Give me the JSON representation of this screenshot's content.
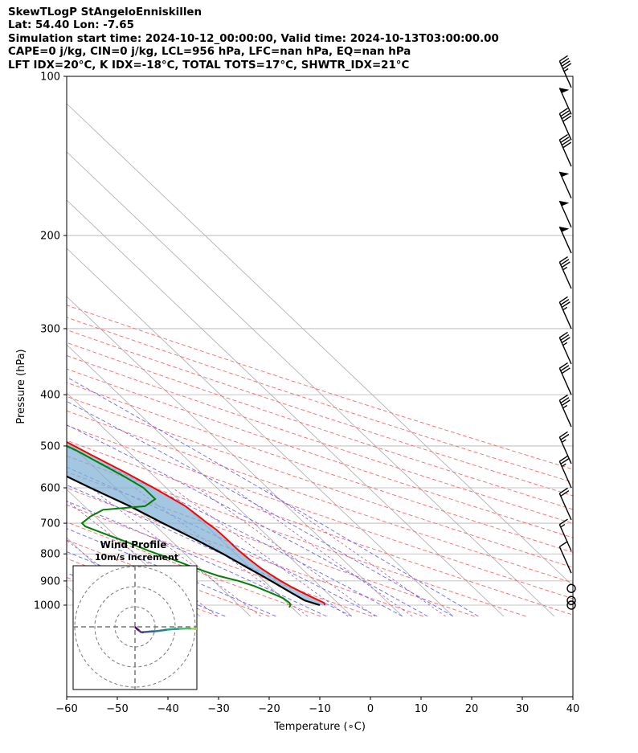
{
  "header": {
    "line1": "SkewTLogP StAngeloEnniskillen",
    "line2": "Lat: 54.40   Lon: -7.65",
    "line3": "Simulation start time: 2024-10-12_00:00:00, Valid time: 2024-10-13T03:00:00.00",
    "line4": "CAPE=0 j/kg, CIN=0 j/kg, LCL=956 hPa, LFC=nan hPa, EQ=nan hPa",
    "line5": "LFT IDX=20°C, K IDX=-18°C, TOTAL TOTS=17°C, SHWTR_IDX=21°C"
  },
  "chart_data": [
    {
      "type": "line",
      "xlabel": "Temperature (∘C)",
      "ylabel": "Pressure (hPa)",
      "xlim": [
        -60,
        40
      ],
      "ylim": [
        1050,
        100
      ],
      "y_scale": "log",
      "skew": "temperature lines skewed ~45°",
      "xticks": [
        "−60",
        "−50",
        "−40",
        "−30",
        "−20",
        "−10",
        "0",
        "10",
        "20",
        "30",
        "40"
      ],
      "yticks": [
        "100",
        "200",
        "300",
        "400",
        "500",
        "600",
        "700",
        "800",
        "900",
        "1000"
      ],
      "grid": true,
      "colors": {
        "temperature": "#ff0000",
        "dewpoint": "#008000",
        "parcel": "#000000",
        "cin_fill": "#7fb0d6",
        "dry_adiabats": "#ff6666",
        "moist_adiabats": "#6666ff",
        "mixing_ratio": "#9b59b6",
        "isotherms": "#999999"
      },
      "series": [
        {
          "key": "temperature",
          "points": [
            [
              1000,
              7
            ],
            [
              990,
              7.3
            ],
            [
              970,
              6.3
            ],
            [
              950,
              5.3
            ],
            [
              925,
              4.2
            ],
            [
              900,
              3.3
            ],
            [
              875,
              2.6
            ],
            [
              850,
              2.0
            ],
            [
              820,
              1.6
            ],
            [
              800,
              1.4
            ],
            [
              780,
              1.3
            ],
            [
              750,
              1.3
            ],
            [
              720,
              1.2
            ],
            [
              700,
              0.8
            ],
            [
              680,
              0.5
            ],
            [
              650,
              0
            ],
            [
              600,
              -2.5
            ],
            [
              560,
              -5
            ],
            [
              520,
              -8
            ],
            [
              500,
              -9.5
            ],
            [
              470,
              -12
            ],
            [
              450,
              -14
            ],
            [
              430,
              -16
            ],
            [
              400,
              -20
            ],
            [
              350,
              -26
            ],
            [
              300,
              -33
            ],
            [
              270,
              -38.5
            ],
            [
              255,
              -43
            ],
            [
              240,
              -46
            ],
            [
              225,
              -49
            ],
            [
              210,
              -52
            ],
            [
              200,
              -54.5
            ],
            [
              190,
              -52
            ],
            [
              180,
              -50
            ],
            [
              170,
              -49.5
            ],
            [
              160,
              -49.5
            ],
            [
              150,
              -50
            ],
            [
              140,
              -51
            ],
            [
              130,
              -52
            ],
            [
              120,
              -53.5
            ],
            [
              110,
              -55
            ],
            [
              100,
              -56
            ]
          ]
        },
        {
          "key": "dewpoint",
          "points": [
            [
              1010,
              -0.5
            ],
            [
              1000,
              0.2
            ],
            [
              990,
              0.5
            ],
            [
              970,
              0.2
            ],
            [
              950,
              -1.0
            ],
            [
              920,
              -3
            ],
            [
              900,
              -5
            ],
            [
              880,
              -8
            ],
            [
              850,
              -11
            ],
            [
              820,
              -13.5
            ],
            [
              790,
              -16.5
            ],
            [
              760,
              -19
            ],
            [
              730,
              -22
            ],
            [
              710,
              -24
            ],
            [
              700,
              -24
            ],
            [
              680,
              -21
            ],
            [
              660,
              -17
            ],
            [
              650,
              -8
            ],
            [
              630,
              -4.5
            ],
            [
              600,
              -4.5
            ],
            [
              570,
              -6
            ],
            [
              540,
              -8
            ],
            [
              510,
              -10
            ],
            [
              490,
              -12
            ],
            [
              470,
              -13
            ],
            [
              450,
              -14.5
            ],
            [
              420,
              -17
            ],
            [
              380,
              -21
            ],
            [
              340,
              -25
            ],
            [
              300,
              -30
            ],
            [
              280,
              -34
            ],
            [
              260,
              -39
            ],
            [
              255,
              -40
            ],
            [
              240,
              -43
            ],
            [
              225,
              -45
            ],
            [
              210,
              -47
            ],
            [
              200,
              -49
            ],
            [
              185,
              -51
            ],
            [
              175,
              -54
            ],
            [
              165,
              -60
            ],
            [
              160,
              -63
            ],
            [
              150,
              -63
            ],
            [
              140,
              -66
            ],
            [
              130,
              -70
            ],
            [
              120,
              -74
            ],
            [
              110,
              -78
            ],
            [
              100,
              -82
            ]
          ]
        },
        {
          "key": "parcel",
          "points": [
            [
              1000,
              6
            ],
            [
              980,
              4
            ],
            [
              956,
              3.2
            ],
            [
              950,
              3.0
            ],
            [
              925,
              2.2
            ],
            [
              900,
              1.4
            ],
            [
              875,
              0.5
            ],
            [
              850,
              -0.5
            ],
            [
              800,
              -2.5
            ],
            [
              750,
              -5
            ],
            [
              700,
              -8
            ],
            [
              650,
              -11
            ],
            [
              600,
              -15
            ],
            [
              550,
              -19
            ],
            [
              500,
              -24
            ],
            [
              450,
              -29
            ],
            [
              400,
              -35
            ],
            [
              350,
              -42
            ],
            [
              300,
              -49
            ],
            [
              250,
              -58
            ],
            [
              200,
              -68
            ],
            [
              150,
              -80
            ],
            [
              120,
              -90
            ],
            [
              100,
              -97
            ]
          ]
        }
      ]
    },
    {
      "type": "scatter",
      "title": "Wind Profile",
      "subtitle": "10m/s increment",
      "rings_ms": [
        10,
        20,
        30
      ],
      "trace_uv": [
        [
          0,
          0
        ],
        [
          0.5,
          -0.6
        ],
        [
          1.2,
          -1.2
        ],
        [
          2.0,
          -1.8
        ],
        [
          2.6,
          -2.4
        ],
        [
          3.4,
          -2.8
        ],
        [
          4.5,
          -2.6
        ],
        [
          6,
          -2.5
        ],
        [
          8,
          -2.3
        ],
        [
          10,
          -2.2
        ],
        [
          12,
          -2.0
        ],
        [
          14,
          -1.7
        ],
        [
          16,
          -1.4
        ],
        [
          18,
          -1.2
        ],
        [
          20,
          -1.1
        ],
        [
          22,
          -1.0
        ],
        [
          24,
          -0.9
        ],
        [
          26,
          -0.8
        ],
        [
          28,
          -0.9
        ],
        [
          30,
          -1.0
        ],
        [
          32,
          -1.0
        ],
        [
          34,
          -1.1
        ],
        [
          36,
          -1.2
        ],
        [
          38,
          -1.1
        ]
      ]
    }
  ],
  "wind_barbs": {
    "pressures": [
      105,
      118,
      132,
      148,
      170,
      193,
      216,
      252,
      300,
      350,
      400,
      460,
      540,
      600,
      690,
      790,
      870,
      930,
      980,
      1000
    ],
    "speeds_kt": [
      45,
      50,
      40,
      40,
      50,
      50,
      50,
      35,
      35,
      35,
      30,
      35,
      25,
      25,
      20,
      15,
      10,
      0,
      0,
      0
    ]
  }
}
